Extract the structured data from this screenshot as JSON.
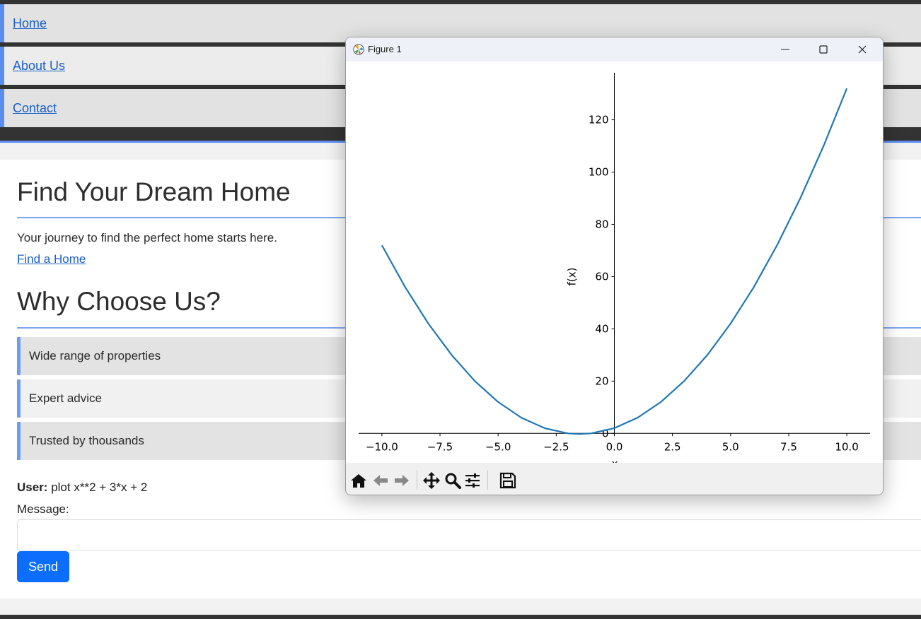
{
  "nav": {
    "items": [
      {
        "label": "Home"
      },
      {
        "label": "About Us"
      },
      {
        "label": "Contact"
      }
    ]
  },
  "hero": {
    "title": "Find Your Dream Home",
    "lead": "Your journey to find the perfect home starts here.",
    "cta_label": "Find a Home"
  },
  "why": {
    "title": "Why Choose Us?",
    "features": [
      "Wide range of properties",
      "Expert advice",
      "Trusted by thousands"
    ]
  },
  "chat": {
    "user_label": "User:",
    "user_message": "plot x**2 + 3*x + 2",
    "message_label": "Message:",
    "message_value": "",
    "send_label": "Send"
  },
  "figure": {
    "window_title": "Figure 1",
    "icons": [
      "home-icon",
      "back-arrow-icon",
      "forward-arrow-icon",
      "pan-icon",
      "zoom-icon",
      "configure-subplots-icon",
      "save-icon"
    ],
    "line_color": "#1f77b4"
  },
  "colors": {
    "accent": "#5b8def",
    "link": "#1a5fc9",
    "send_button": "#0d6efd"
  },
  "chart_data": {
    "type": "line",
    "expression": "x**2 + 3*x + 2",
    "x_range": [
      -10,
      10
    ],
    "series": [
      {
        "x": [
          -10,
          -9,
          -8,
          -7,
          -6,
          -5,
          -4,
          -3,
          -2,
          -1.5,
          -1,
          0,
          1,
          2,
          3,
          4,
          5,
          6,
          7,
          8,
          9,
          10
        ],
        "y": [
          72,
          56,
          42,
          30,
          20,
          12,
          6,
          2,
          0,
          -0.25,
          0,
          2,
          6,
          12,
          20,
          30,
          42,
          56,
          72,
          90,
          110,
          132
        ]
      }
    ],
    "xlabel": "x",
    "ylabel": "f(x)",
    "xticks": [
      "−10.0",
      "−7.5",
      "−5.0",
      "−2.5",
      "0.0",
      "2.5",
      "5.0",
      "7.5",
      "10.0"
    ],
    "yticks": [
      "0",
      "20",
      "40",
      "60",
      "80",
      "100",
      "120"
    ],
    "xlim": [
      -11,
      11
    ],
    "ylim": [
      -1,
      138
    ],
    "grid": false,
    "spines": "centered"
  }
}
